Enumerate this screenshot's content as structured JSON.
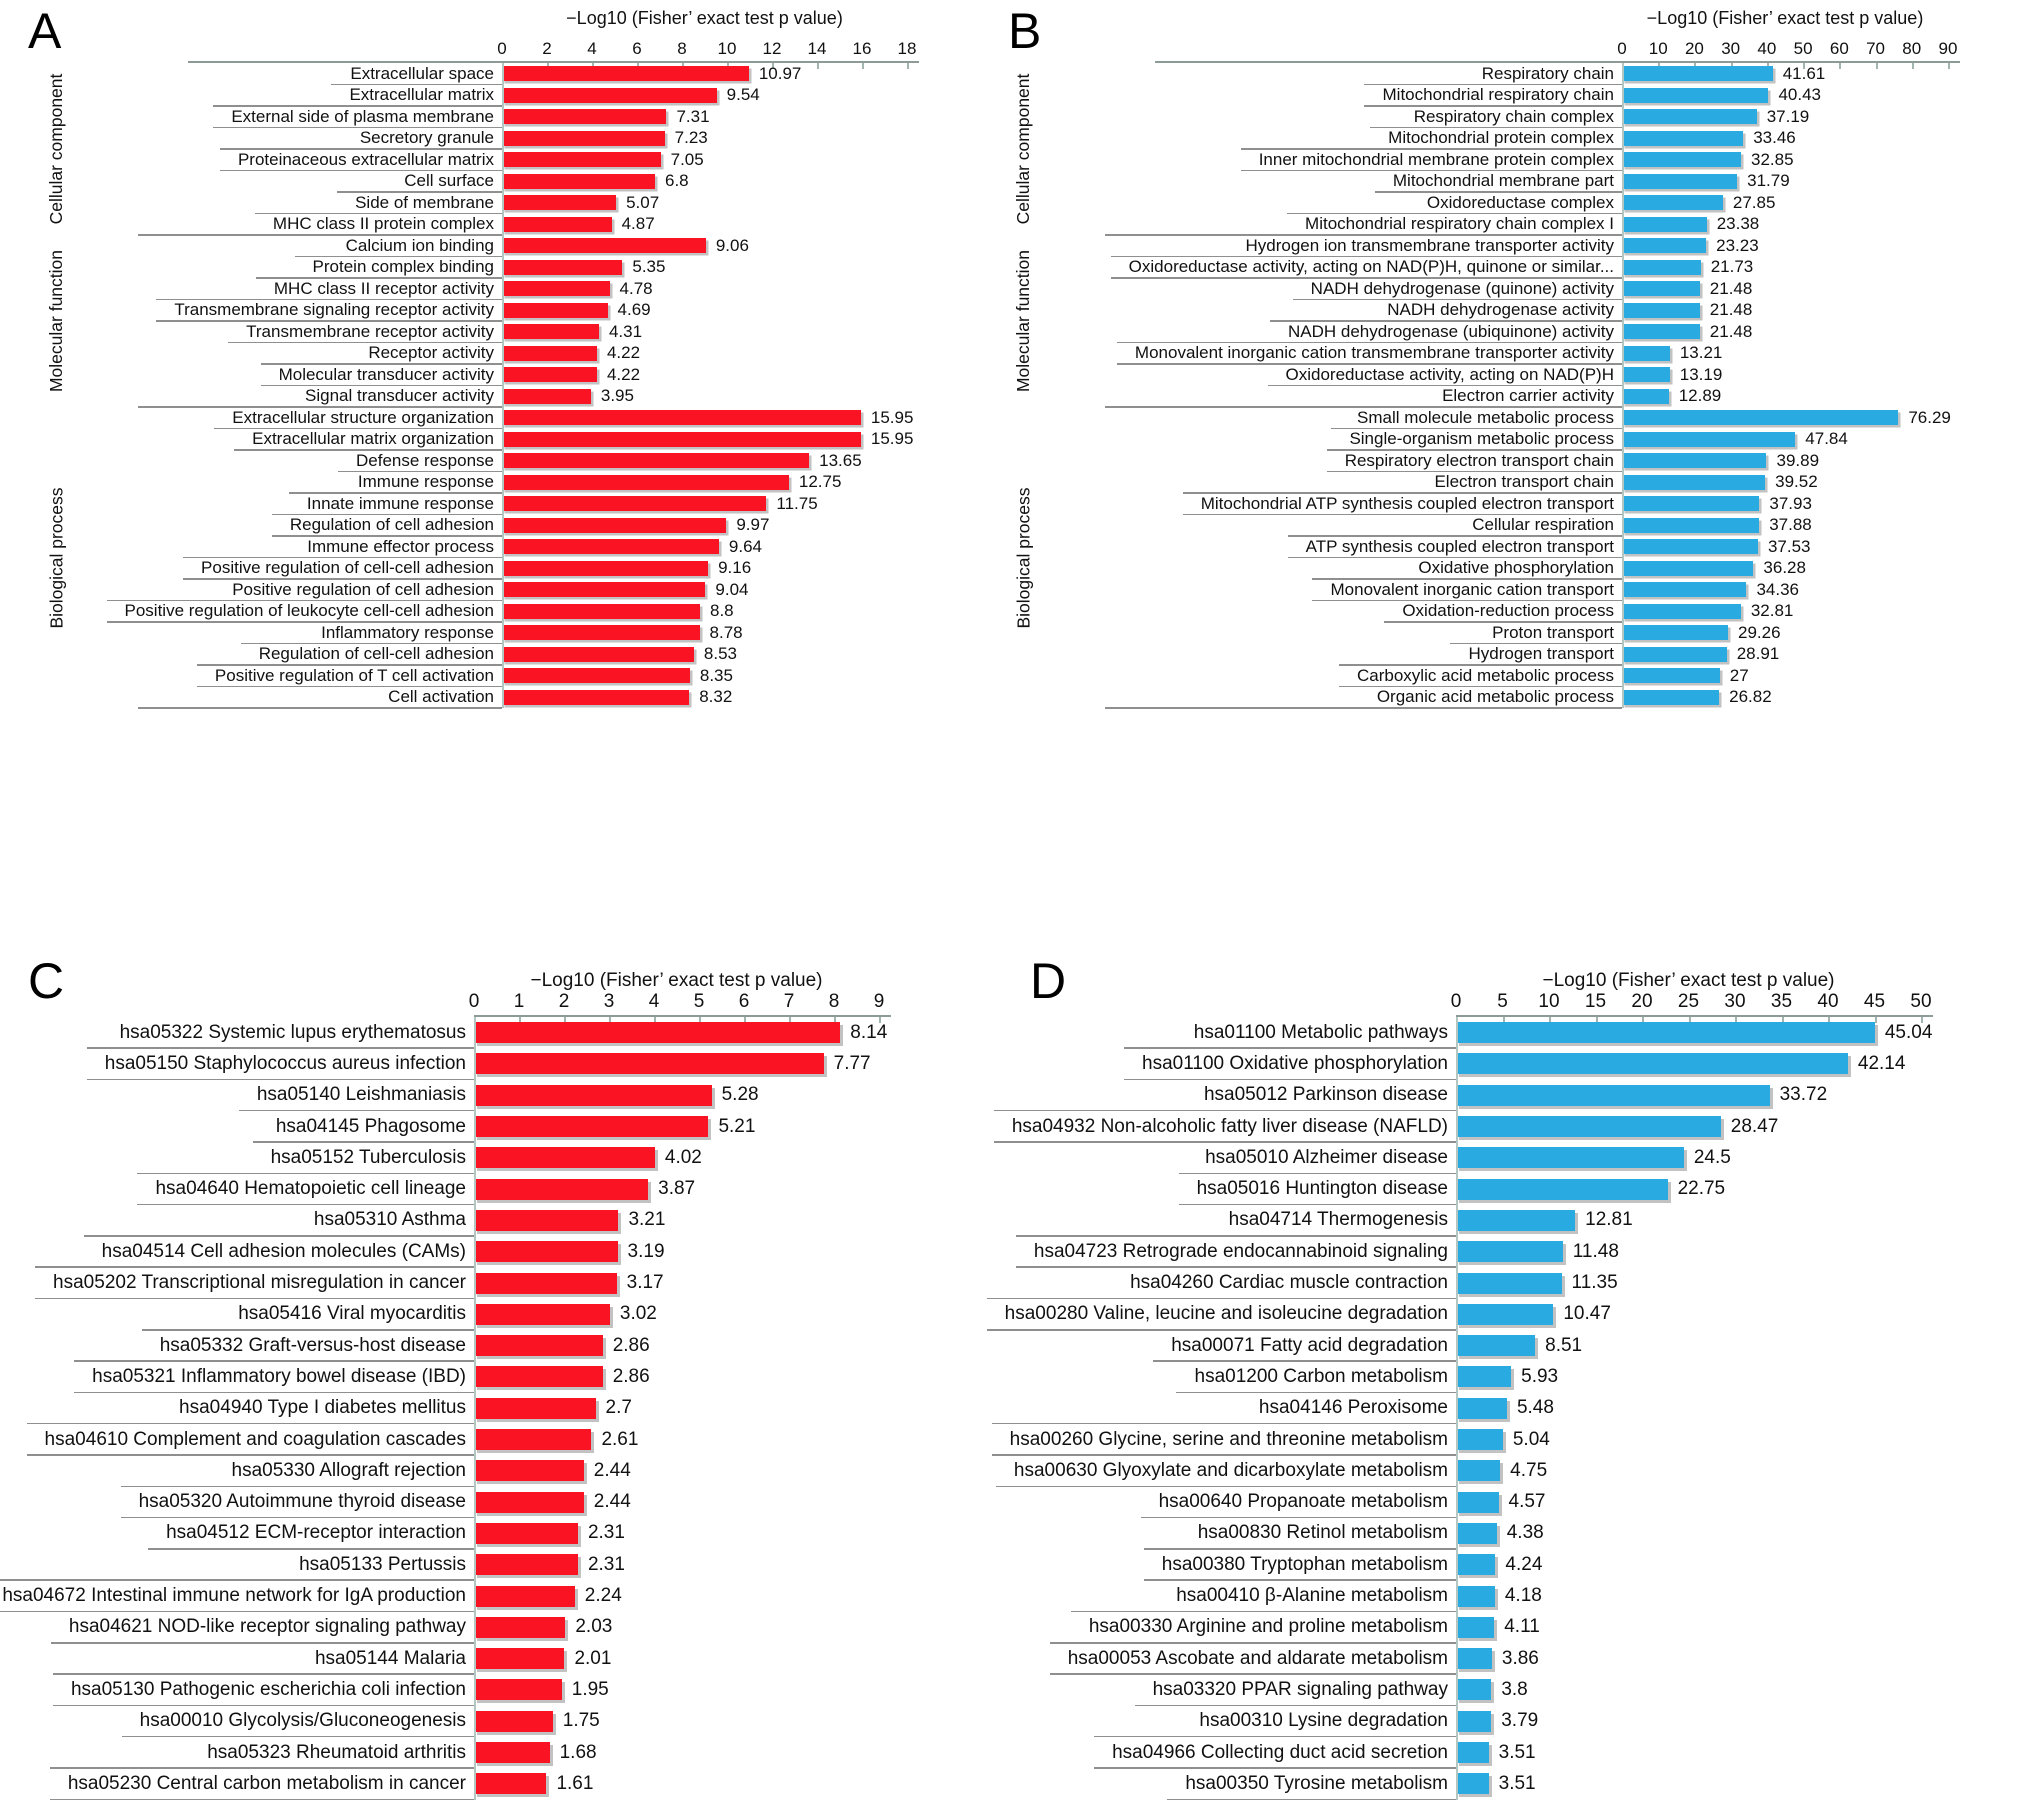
{
  "figure": {
    "background_color": "#ffffff",
    "shared_axis_title": "−Log10 (Fisher’ exact test p value)"
  },
  "chart_data": [
    {
      "type": "bar",
      "panel": "A",
      "title": "−Log10 (Fisher’ exact test p value)",
      "orientation": "horizontal",
      "bar_color": "#fa1423",
      "xlim": [
        0,
        18
      ],
      "tick_step": 2,
      "grid": false,
      "groups": [
        {
          "label": "Cellular component",
          "span": 8
        },
        {
          "label": "Molecular function",
          "span": 8
        },
        {
          "label": "Biological process",
          "span": 14
        }
      ],
      "categories": [
        "Extracellular space",
        "Extracellular matrix",
        "External side of plasma membrane",
        "Secretory granule",
        "Proteinaceous extracellular matrix",
        "Cell surface",
        "Side of membrane",
        "MHC class II protein complex",
        "Calcium ion binding",
        "Protein complex binding",
        "MHC class II receptor activity",
        "Transmembrane signaling receptor activity",
        "Transmembrane receptor activity",
        "Receptor activity",
        "Molecular transducer activity",
        "Signal transducer activity",
        "Extracellular structure organization",
        "Extracellular matrix organization",
        "Defense response",
        "Immune response",
        "Innate immune response",
        "Regulation of cell adhesion",
        "Immune effector process",
        "Positive regulation of cell-cell adhesion",
        "Positive regulation of cell adhesion",
        "Positive regulation of leukocyte cell-cell adhesion",
        "Inflammatory response",
        "Regulation of cell-cell adhesion",
        "Positive regulation of T cell activation",
        "Cell activation"
      ],
      "values": [
        10.97,
        9.54,
        7.31,
        7.23,
        7.05,
        6.8,
        5.07,
        4.87,
        9.06,
        5.35,
        4.78,
        4.69,
        4.31,
        4.22,
        4.22,
        3.95,
        15.95,
        15.95,
        13.65,
        12.75,
        11.75,
        9.97,
        9.64,
        9.16,
        9.04,
        8.8,
        8.78,
        8.53,
        8.35,
        8.32
      ],
      "value_labels": [
        "10.97",
        "9.54",
        "7.31",
        "7.23",
        "7.05",
        "6.8",
        "5.07",
        "4.87",
        "9.06",
        "5.35",
        "4.78",
        "4.69",
        "4.31",
        "4.22",
        "4.22",
        "3.95",
        "15.95",
        "15.95",
        "13.65",
        "12.75",
        "11.75",
        "9.97",
        "9.64",
        "9.16",
        "9.04",
        "8.8",
        "8.78",
        "8.53",
        "8.35",
        "8.32"
      ]
    },
    {
      "type": "bar",
      "panel": "B",
      "title": "−Log10 (Fisher’ exact test p value)",
      "orientation": "horizontal",
      "bar_color": "#29abe2",
      "xlim": [
        0,
        90
      ],
      "tick_step": 10,
      "grid": false,
      "groups": [
        {
          "label": "Cellular component",
          "span": 8
        },
        {
          "label": "Molecular function",
          "span": 8
        },
        {
          "label": "Biological process",
          "span": 14
        }
      ],
      "categories": [
        "Respiratory chain",
        "Mitochondrial respiratory chain",
        "Respiratory chain complex",
        "Mitochondrial protein complex",
        "Inner mitochondrial membrane protein complex",
        "Mitochondrial membrane part",
        "Oxidoreductase complex",
        "Mitochondrial respiratory chain complex I",
        "Hydrogen ion transmembrane transporter activity",
        "Oxidoreductase activity, acting on NAD(P)H, quinone or similar...",
        "NADH dehydrogenase (quinone) activity",
        "NADH dehydrogenase activity",
        "NADH dehydrogenase (ubiquinone) activity",
        "Monovalent inorganic cation transmembrane transporter activity",
        "Oxidoreductase activity, acting on NAD(P)H",
        "Electron carrier activity",
        "Small molecule metabolic process",
        "Single-organism metabolic process",
        "Respiratory electron transport chain",
        "Electron transport chain",
        "Mitochondrial ATP synthesis coupled electron transport",
        "Cellular respiration",
        "ATP synthesis coupled electron transport",
        "Oxidative phosphorylation",
        "Monovalent inorganic cation transport",
        "Oxidation-reduction process",
        "Proton transport",
        "Hydrogen transport",
        "Carboxylic acid metabolic process",
        "Organic acid metabolic process"
      ],
      "values": [
        41.61,
        40.43,
        37.19,
        33.46,
        32.85,
        31.79,
        27.85,
        23.38,
        23.23,
        21.73,
        21.48,
        21.48,
        21.48,
        13.21,
        13.19,
        12.89,
        76.29,
        47.84,
        39.89,
        39.52,
        37.93,
        37.88,
        37.53,
        36.28,
        34.36,
        32.81,
        29.26,
        28.91,
        27,
        26.82
      ],
      "value_labels": [
        "41.61",
        "40.43",
        "37.19",
        "33.46",
        "32.85",
        "31.79",
        "27.85",
        "23.38",
        "23.23",
        "21.73",
        "21.48",
        "21.48",
        "21.48",
        "13.21",
        "13.19",
        "12.89",
        "76.29",
        "47.84",
        "39.89",
        "39.52",
        "37.93",
        "37.88",
        "37.53",
        "36.28",
        "34.36",
        "32.81",
        "29.26",
        "28.91",
        "27",
        "26.82"
      ]
    },
    {
      "type": "bar",
      "panel": "C",
      "title": "−Log10 (Fisher’ exact test p value)",
      "orientation": "horizontal",
      "bar_color": "#fa1423",
      "xlim": [
        0,
        9
      ],
      "tick_step": 1,
      "grid": false,
      "categories": [
        "hsa05322 Systemic lupus erythematosus",
        "hsa05150 Staphylococcus aureus infection",
        "hsa05140 Leishmaniasis",
        "hsa04145 Phagosome",
        "hsa05152 Tuberculosis",
        "hsa04640 Hematopoietic cell lineage",
        "hsa05310 Asthma",
        "hsa04514 Cell adhesion molecules (CAMs)",
        "hsa05202 Transcriptional misregulation in cancer",
        "hsa05416 Viral myocarditis",
        "hsa05332 Graft-versus-host disease",
        "hsa05321 Inflammatory bowel disease (IBD)",
        "hsa04940 Type I diabetes mellitus",
        "hsa04610 Complement and coagulation cascades",
        "hsa05330 Allograft rejection",
        "hsa05320 Autoimmune thyroid disease",
        "hsa04512 ECM-receptor interaction",
        "hsa05133 Pertussis",
        "hsa04672 Intestinal immune network for IgA production",
        "hsa04621 NOD-like receptor signaling pathway",
        "hsa05144 Malaria",
        "hsa05130 Pathogenic escherichia coli infection",
        "hsa00010 Glycolysis/Gluconeogenesis",
        "hsa05323 Rheumatoid arthritis",
        "hsa05230 Central carbon metabolism in cancer"
      ],
      "values": [
        8.14,
        7.77,
        5.28,
        5.21,
        4.02,
        3.87,
        3.21,
        3.19,
        3.17,
        3.02,
        2.86,
        2.86,
        2.7,
        2.61,
        2.44,
        2.44,
        2.31,
        2.31,
        2.24,
        2.03,
        2.01,
        1.95,
        1.75,
        1.68,
        1.61
      ],
      "value_labels": [
        "8.14",
        "7.77",
        "5.28",
        "5.21",
        "4.02",
        "3.87",
        "3.21",
        "3.19",
        "3.17",
        "3.02",
        "2.86",
        "2.86",
        "2.7",
        "2.61",
        "2.44",
        "2.44",
        "2.31",
        "2.31",
        "2.24",
        "2.03",
        "2.01",
        "1.95",
        "1.75",
        "1.68",
        "1.61"
      ]
    },
    {
      "type": "bar",
      "panel": "D",
      "title": "−Log10 (Fisher’ exact test p value)",
      "orientation": "horizontal",
      "bar_color": "#29abe2",
      "xlim": [
        0,
        50
      ],
      "tick_step": 5,
      "grid": false,
      "categories": [
        "hsa01100 Metabolic pathways",
        "hsa01100 Oxidative phosphorylation",
        "hsa05012 Parkinson disease",
        "hsa04932 Non-alcoholic fatty liver disease (NAFLD)",
        "hsa05010 Alzheimer disease",
        "hsa05016 Huntington disease",
        "hsa04714 Thermogenesis",
        "hsa04723 Retrograde endocannabinoid signaling",
        "hsa04260 Cardiac muscle contraction",
        "hsa00280 Valine, leucine and isoleucine degradation",
        "hsa00071 Fatty acid degradation",
        "hsa01200 Carbon metabolism",
        "hsa04146 Peroxisome",
        "hsa00260 Glycine, serine and threonine metabolism",
        "hsa00630 Glyoxylate and dicarboxylate metabolism",
        "hsa00640 Propanoate metabolism",
        "hsa00830 Retinol metabolism",
        "hsa00380 Tryptophan metabolism",
        "hsa00410 β-Alanine metabolism",
        "hsa00330 Arginine and proline metabolism",
        "hsa00053 Ascobate and aldarate metabolism",
        "hsa03320 PPAR signaling pathway",
        "hsa00310 Lysine degradation",
        "hsa04966 Collecting duct acid secretion",
        "hsa00350 Tyrosine metabolism"
      ],
      "values": [
        45.04,
        42.14,
        33.72,
        28.47,
        24.5,
        22.75,
        12.81,
        11.48,
        11.35,
        10.47,
        8.51,
        5.93,
        5.48,
        5.04,
        4.75,
        4.57,
        4.38,
        4.24,
        4.18,
        4.11,
        3.86,
        3.8,
        3.79,
        3.51,
        3.51
      ],
      "value_labels": [
        "45.04",
        "42.14",
        "33.72",
        "28.47",
        "24.5",
        "22.75",
        "12.81",
        "11.48",
        "11.35",
        "10.47",
        "8.51",
        "5.93",
        "5.48",
        "5.04",
        "4.75",
        "4.57",
        "4.38",
        "4.24",
        "4.18",
        "4.11",
        "3.86",
        "3.8",
        "3.79",
        "3.51",
        "3.51"
      ]
    }
  ]
}
